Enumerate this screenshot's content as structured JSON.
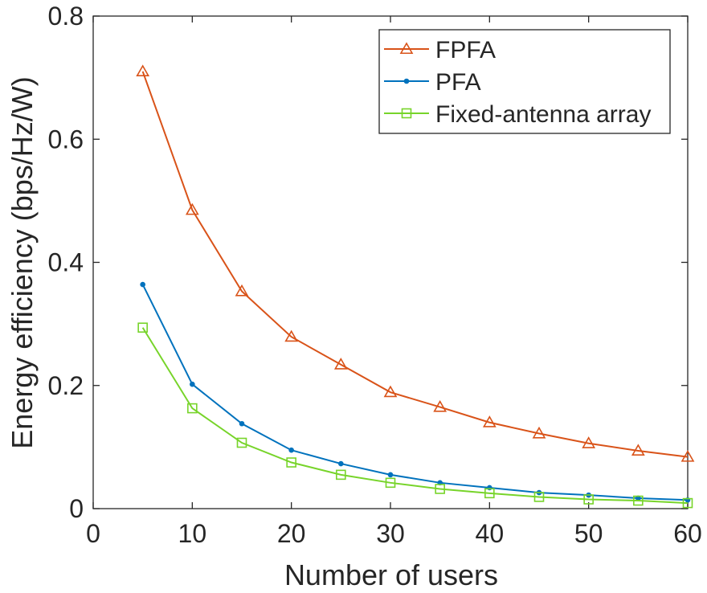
{
  "chart_data": {
    "type": "line",
    "title": "",
    "xlabel": "Number of users",
    "ylabel": "Energy efficiency (bps/Hz/W)",
    "xlim": [
      0,
      60
    ],
    "ylim": [
      0,
      0.8
    ],
    "xticks": [
      0,
      10,
      20,
      30,
      40,
      50,
      60
    ],
    "yticks": [
      0,
      0.2,
      0.4,
      0.6,
      0.8
    ],
    "xtick_labels": [
      "0",
      "10",
      "20",
      "30",
      "40",
      "50",
      "60"
    ],
    "ytick_labels": [
      "0",
      "0.2",
      "0.4",
      "0.6",
      "0.8"
    ],
    "grid": false,
    "legend_position": "top-right",
    "x": [
      5,
      10,
      15,
      20,
      25,
      30,
      35,
      40,
      45,
      50,
      55,
      60
    ],
    "series": [
      {
        "name": "FPFA",
        "color": "#D95319",
        "marker": "triangle",
        "values": [
          0.71,
          0.485,
          0.353,
          0.279,
          0.234,
          0.189,
          0.165,
          0.14,
          0.122,
          0.106,
          0.094,
          0.084
        ]
      },
      {
        "name": "PFA",
        "color": "#0072BD",
        "marker": "dot",
        "values": [
          0.364,
          0.202,
          0.138,
          0.095,
          0.073,
          0.055,
          0.042,
          0.034,
          0.026,
          0.022,
          0.017,
          0.014
        ]
      },
      {
        "name": "Fixed-antenna array",
        "color": "#77D42A",
        "marker": "square",
        "values": [
          0.294,
          0.163,
          0.107,
          0.075,
          0.055,
          0.042,
          0.032,
          0.025,
          0.019,
          0.015,
          0.013,
          0.009
        ]
      }
    ]
  }
}
